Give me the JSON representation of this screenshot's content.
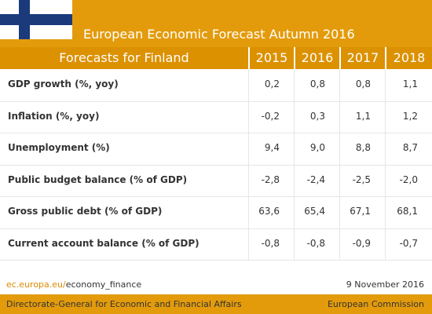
{
  "header": {
    "title": "European Economic Forecast Autumn 2016"
  },
  "table": {
    "caption": "Forecasts for Finland",
    "columns": [
      "2015",
      "2016",
      "2017",
      "2018"
    ],
    "rows": [
      [
        "GDP growth (%, yoy)",
        "0,2",
        "0,8",
        "0,8",
        "1,1"
      ],
      [
        "Inflation (%, yoy)",
        "-0,2",
        "0,3",
        "1,1",
        "1,2"
      ],
      [
        "Unemployment (%)",
        "9,4",
        "9,0",
        "8,8",
        "8,7"
      ],
      [
        "Public budget balance (% of GDP)",
        "-2,8",
        "-2,4",
        "-2,5",
        "-2,0"
      ],
      [
        "Gross public debt (% of GDP)",
        "63,6",
        "65,4",
        "67,1",
        "68,1"
      ],
      [
        "Current account balance (% of GDP)",
        "-0,8",
        "-0,8",
        "-0,9",
        "-0,7"
      ]
    ]
  },
  "footer": {
    "link_domain": "ec.europa.eu/",
    "link_path": "economy_finance",
    "date": "9 November 2016",
    "department": "Directorate-General for Economic and Financial Affairs",
    "organisation": "European Commission"
  }
}
